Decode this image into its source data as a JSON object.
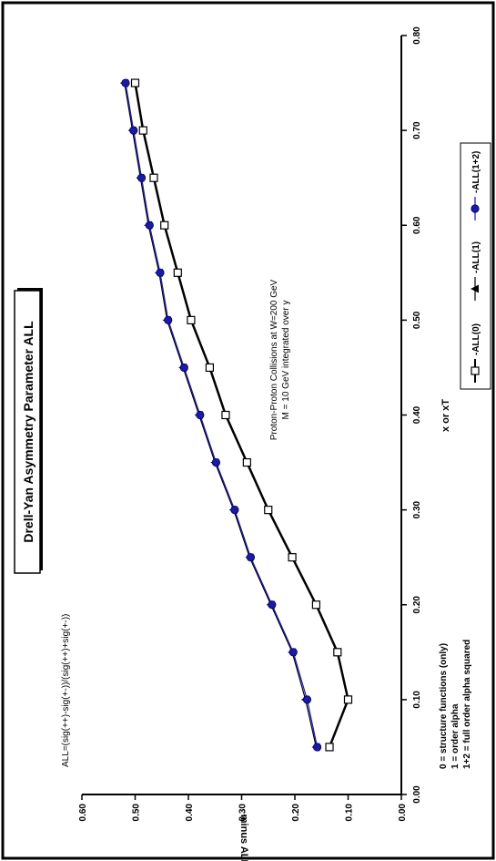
{
  "chart_data": {
    "type": "line",
    "title": "Drell-Yan Asymmetry Parameter ALL",
    "xlabel": "x or xT",
    "ylabel": "minus ALL",
    "xlim": [
      0,
      0.8
    ],
    "ylim": [
      0,
      0.6
    ],
    "x_ticks": [
      "0.00",
      "0.10",
      "0.20",
      "0.30",
      "0.40",
      "0.50",
      "0.60",
      "0.70",
      "0.80"
    ],
    "y_ticks": [
      "0.00",
      "0.10",
      "0.20",
      "0.30",
      "0.40",
      "0.50",
      "0.60"
    ],
    "x": [
      0.05,
      0.1,
      0.15,
      0.2,
      0.25,
      0.3,
      0.35,
      0.4,
      0.45,
      0.5,
      0.55,
      0.6,
      0.65,
      0.7,
      0.75
    ],
    "series": [
      {
        "name": "-ALL(0)",
        "color": "#000000",
        "marker": "open-square",
        "values": [
          0.135,
          0.1,
          0.12,
          0.16,
          0.205,
          0.25,
          0.29,
          0.33,
          0.36,
          0.395,
          0.42,
          0.445,
          0.465,
          0.485,
          0.5
        ]
      },
      {
        "name": "-ALL(1)",
        "color": "#000000",
        "marker": "filled-triangle",
        "values": [
          0.16,
          0.18,
          0.205,
          0.245,
          0.285,
          0.315,
          0.35,
          0.38,
          0.41,
          0.44,
          0.455,
          0.475,
          0.49,
          0.505,
          0.52
        ]
      },
      {
        "name": "-ALL(1+2)",
        "color": "#1a1aa8",
        "marker": "filled-circle",
        "values": [
          0.158,
          0.177,
          0.203,
          0.243,
          0.283,
          0.313,
          0.348,
          0.378,
          0.408,
          0.438,
          0.453,
          0.473,
          0.488,
          0.503,
          0.518
        ]
      }
    ],
    "annotations": {
      "formula": "ALL=(sig(++)-sig(+-))/(sig(++)+sig(+-))",
      "collision_line1": "Proton-Proton Collisions at W=200 GeV",
      "collision_line2": "M = 10 GeV  integrated over y",
      "notes": [
        "0 = structure functions (only)",
        "1 = order alpha",
        "1+2 = full order alpha squared"
      ]
    },
    "legend_position": "right",
    "grid": false
  }
}
